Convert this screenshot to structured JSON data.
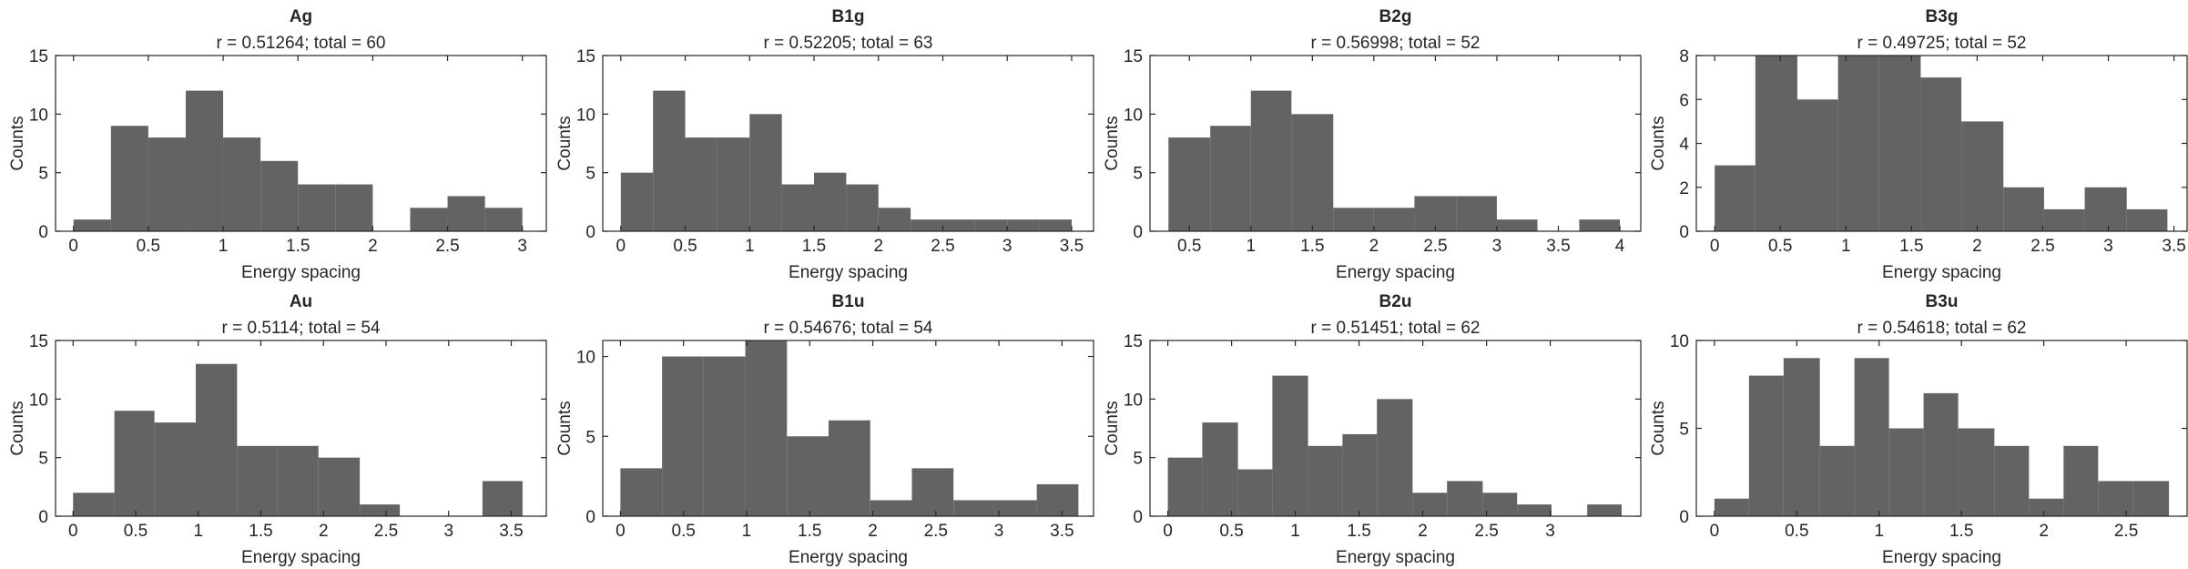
{
  "chart_data": [
    {
      "type": "histogram",
      "title": "Ag",
      "subtitle": "r = 0.51264; total = 60",
      "xlabel": "Energy spacing",
      "ylabel": "Counts",
      "color": "#636363",
      "bins": [
        0,
        0.25,
        0.5,
        0.75,
        1,
        1.25,
        1.5,
        1.75,
        2,
        2.25,
        2.5,
        2.75,
        3
      ],
      "values": [
        1,
        9,
        8,
        12,
        8,
        6,
        4,
        4,
        0,
        2,
        3,
        2
      ],
      "xlim": [
        -0.12,
        3.16
      ],
      "ylim": [
        0,
        15
      ],
      "xticks": [
        0,
        0.5,
        1,
        1.5,
        2,
        2.5,
        3
      ],
      "yticks": [
        0,
        5,
        10,
        15
      ]
    },
    {
      "type": "histogram",
      "title": "B1g",
      "subtitle": "r = 0.52205; total = 63",
      "xlabel": "Energy spacing",
      "ylabel": "Counts",
      "color": "#636363",
      "bins": [
        0,
        0.25,
        0.5,
        0.75,
        1,
        1.25,
        1.5,
        1.75,
        2,
        2.25,
        2.5,
        2.75,
        3,
        3.25,
        3.5
      ],
      "values": [
        5,
        12,
        8,
        8,
        10,
        4,
        5,
        4,
        2,
        1,
        1,
        1,
        1,
        1
      ],
      "xlim": [
        -0.14,
        3.67
      ],
      "ylim": [
        0,
        15
      ],
      "xticks": [
        0,
        0.5,
        1,
        1.5,
        2,
        2.5,
        3,
        3.5
      ],
      "yticks": [
        0,
        5,
        10,
        15
      ]
    },
    {
      "type": "histogram",
      "title": "B2g",
      "subtitle": "r = 0.56998; total = 52",
      "xlabel": "Energy spacing",
      "ylabel": "Counts",
      "color": "#636363",
      "bins": [
        0.33,
        0.67,
        1,
        1.33,
        1.67,
        2,
        2.33,
        2.67,
        3,
        3.33,
        3.67,
        4
      ],
      "values": [
        8,
        9,
        12,
        10,
        2,
        2,
        3,
        3,
        1,
        0,
        1
      ],
      "xlim": [
        0.18,
        4.17
      ],
      "ylim": [
        0,
        15
      ],
      "xticks": [
        0.5,
        1,
        1.5,
        2,
        2.5,
        3,
        3.5,
        4
      ],
      "yticks": [
        0,
        5,
        10,
        15
      ]
    },
    {
      "type": "histogram",
      "title": "B3g",
      "subtitle": "r = 0.49725; total = 52",
      "xlabel": "Energy spacing",
      "ylabel": "Counts",
      "color": "#636363",
      "bins": [
        0,
        0.31,
        0.63,
        0.94,
        1.25,
        1.57,
        1.88,
        2.2,
        2.51,
        2.82,
        3.14,
        3.45
      ],
      "values": [
        3,
        8,
        6,
        8,
        8,
        7,
        5,
        2,
        1,
        2,
        1
      ],
      "xlim": [
        -0.14,
        3.6
      ],
      "ylim": [
        0,
        8
      ],
      "xticks": [
        0,
        0.5,
        1,
        1.5,
        2,
        2.5,
        3,
        3.5
      ],
      "yticks": [
        0,
        2,
        4,
        6,
        8
      ]
    },
    {
      "type": "histogram",
      "title": "Au",
      "subtitle": "r = 0.5114; total = 54",
      "xlabel": "Energy spacing",
      "ylabel": "Counts",
      "color": "#636363",
      "bins": [
        0,
        0.33,
        0.65,
        0.98,
        1.31,
        1.63,
        1.96,
        2.29,
        2.61,
        2.94,
        3.27,
        3.59
      ],
      "values": [
        2,
        9,
        8,
        13,
        6,
        6,
        5,
        1,
        0,
        0,
        3
      ],
      "xlim": [
        -0.14,
        3.78
      ],
      "ylim": [
        0,
        15
      ],
      "xticks": [
        0,
        0.5,
        1,
        1.5,
        2,
        2.5,
        3,
        3.5
      ],
      "yticks": [
        0,
        5,
        10,
        15
      ]
    },
    {
      "type": "histogram",
      "title": "B1u",
      "subtitle": "r = 0.54676; total = 54",
      "xlabel": "Energy spacing",
      "ylabel": "Counts",
      "color": "#636363",
      "bins": [
        0,
        0.33,
        0.66,
        0.99,
        1.32,
        1.65,
        1.98,
        2.31,
        2.64,
        2.97,
        3.3,
        3.63
      ],
      "values": [
        3,
        10,
        10,
        11,
        5,
        6,
        1,
        3,
        1,
        1,
        2
      ],
      "xlim": [
        -0.14,
        3.75
      ],
      "ylim": [
        0,
        11
      ],
      "xticks": [
        0,
        0.5,
        1,
        1.5,
        2,
        2.5,
        3,
        3.5
      ],
      "yticks": [
        0,
        5,
        10
      ]
    },
    {
      "type": "histogram",
      "title": "B2u",
      "subtitle": "r = 0.51451; total = 62",
      "xlabel": "Energy spacing",
      "ylabel": "Counts",
      "color": "#636363",
      "bins": [
        0,
        0.27,
        0.55,
        0.82,
        1.1,
        1.37,
        1.64,
        1.92,
        2.19,
        2.47,
        2.74,
        3.01,
        3.29,
        3.56
      ],
      "values": [
        5,
        8,
        4,
        12,
        6,
        7,
        10,
        2,
        3,
        2,
        1,
        0,
        1
      ],
      "xlim": [
        -0.14,
        3.71
      ],
      "ylim": [
        0,
        15
      ],
      "xticks": [
        0,
        0.5,
        1,
        1.5,
        2,
        2.5,
        3
      ],
      "yticks": [
        0,
        5,
        10,
        15
      ]
    },
    {
      "type": "histogram",
      "title": "B3u",
      "subtitle": "r = 0.54618; total = 62",
      "xlabel": "Energy spacing",
      "ylabel": "Counts",
      "color": "#636363",
      "bins": [
        0,
        0.21,
        0.42,
        0.64,
        0.85,
        1.06,
        1.27,
        1.48,
        1.7,
        1.91,
        2.12,
        2.33,
        2.54,
        2.76
      ],
      "values": [
        1,
        8,
        9,
        4,
        9,
        5,
        7,
        5,
        4,
        1,
        4,
        2,
        2
      ],
      "xlim": [
        -0.11,
        2.87
      ],
      "ylim": [
        0,
        10
      ],
      "xticks": [
        0,
        0.5,
        1,
        1.5,
        2,
        2.5
      ],
      "yticks": [
        0,
        5,
        10
      ]
    }
  ]
}
